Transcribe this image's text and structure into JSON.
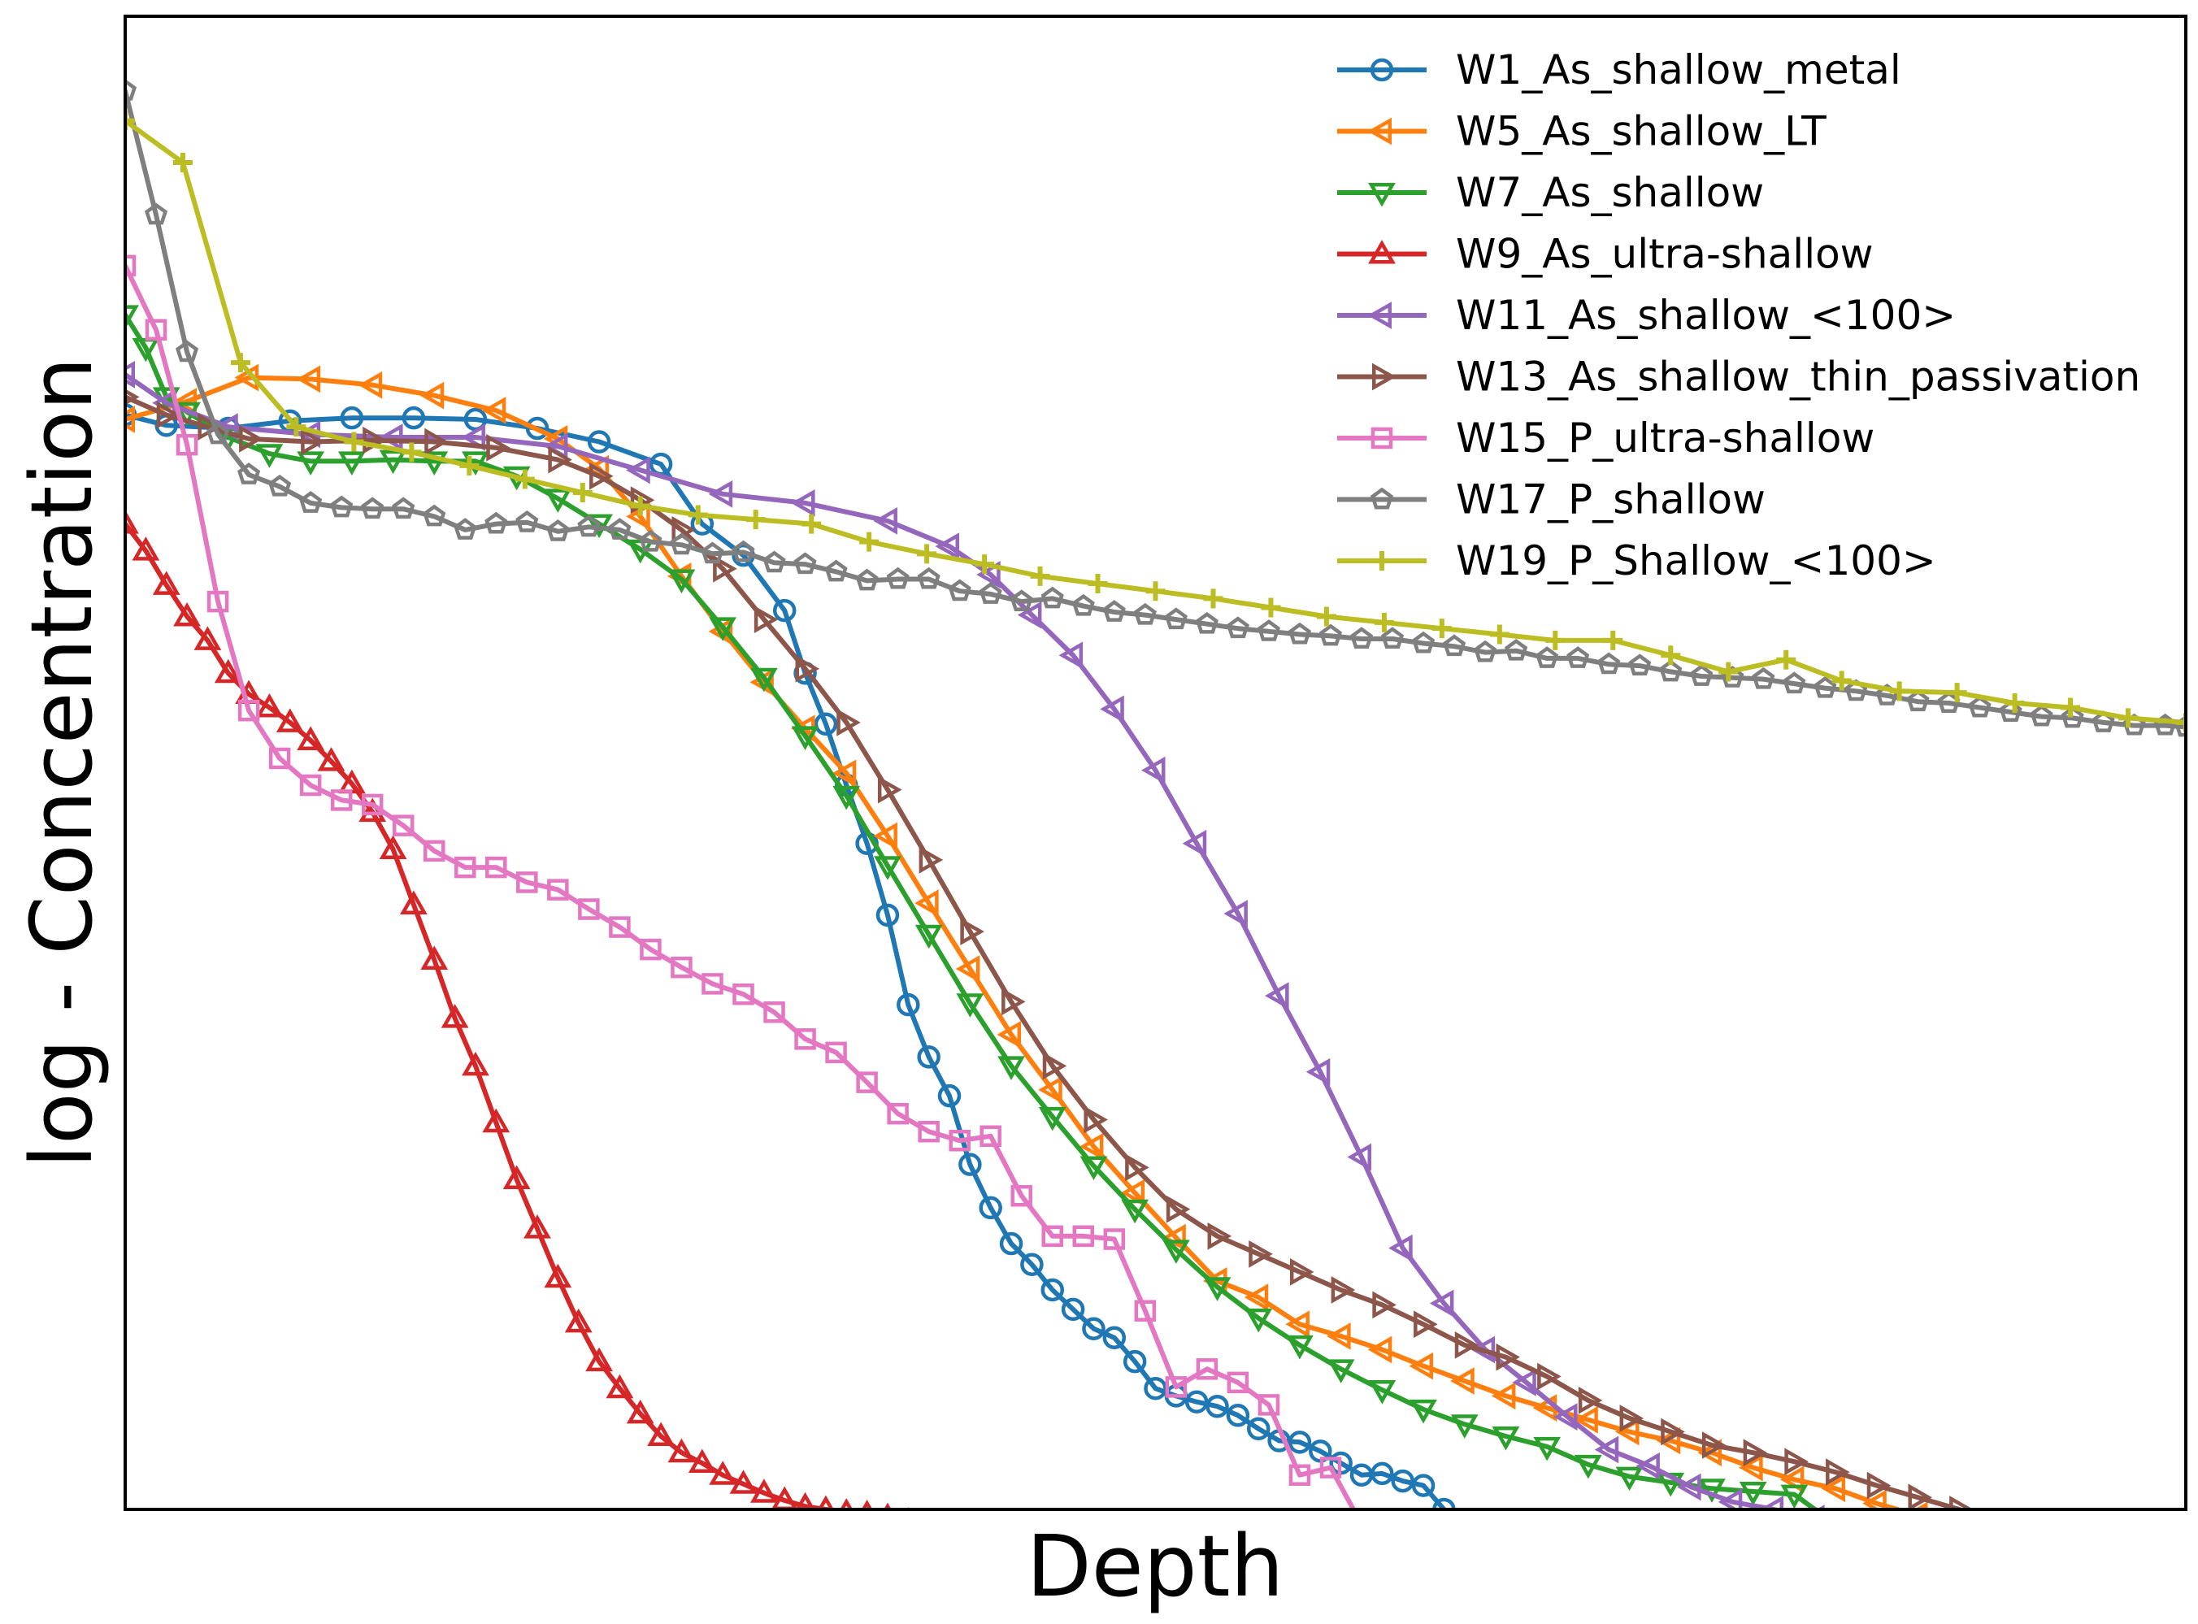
{
  "chart_data": {
    "type": "line",
    "title": "",
    "xlabel": "Depth",
    "ylabel": "log - Concentration",
    "xlim": [
      0,
      100
    ],
    "ylim": [
      0,
      100
    ],
    "x_ticks_shown": false,
    "y_ticks_shown": false,
    "grid": false,
    "legend_position": "top-right",
    "series": [
      {
        "name": "W1_As_shallow_metal",
        "color": "#1f77b4",
        "marker": "circle",
        "x": [
          0,
          2,
          5,
          8,
          11,
          14,
          17,
          20,
          23,
          26,
          28,
          30,
          32,
          33,
          34,
          35,
          36,
          37,
          38,
          39,
          40,
          41,
          42,
          43,
          44,
          45,
          46,
          47,
          48,
          49,
          50,
          51,
          52,
          53,
          54,
          55,
          56,
          57,
          58,
          59,
          60,
          61,
          62,
          63,
          64,
          65,
          66
        ],
        "y": [
          73.3,
          72.6,
          72.4,
          72.9,
          73.1,
          73.1,
          73.0,
          72.4,
          71.5,
          70.0,
          66.0,
          63.9,
          60.2,
          56.0,
          52.6,
          48.5,
          44.6,
          39.8,
          33.8,
          30.3,
          27.7,
          23.1,
          20.2,
          17.8,
          16.4,
          14.7,
          13.4,
          12.1,
          11.5,
          9.9,
          8.1,
          7.6,
          7.2,
          6.9,
          6.3,
          5.4,
          4.6,
          4.5,
          3.9,
          3.1,
          2.3,
          2.4,
          1.9,
          1.6,
          0.0,
          -1.0,
          -2.0
        ]
      },
      {
        "name": "W5_As_shallow_LT",
        "color": "#ff7f0e",
        "marker": "triangle-left",
        "x": [
          0,
          3,
          6,
          9,
          12,
          15,
          18,
          21,
          23,
          25,
          27,
          29,
          31,
          33,
          35,
          37,
          39,
          41,
          43,
          45,
          47,
          49,
          51,
          53,
          55,
          57,
          59,
          61,
          63,
          65,
          67,
          69,
          71,
          73,
          75,
          77,
          79,
          81,
          83,
          85,
          87,
          89,
          91,
          93
        ],
        "y": [
          73.0,
          74.2,
          75.8,
          75.7,
          75.3,
          74.6,
          73.6,
          71.7,
          69.7,
          66.5,
          62.5,
          58.8,
          55.4,
          52.3,
          49.3,
          45.1,
          40.6,
          36.2,
          31.8,
          28.1,
          24.3,
          21.2,
          18.2,
          15.3,
          14.2,
          12.4,
          11.6,
          10.7,
          9.6,
          8.6,
          7.6,
          6.8,
          6.0,
          5.2,
          4.6,
          3.8,
          2.8,
          2.0,
          1.4,
          0.4,
          -0.4,
          -1.0,
          -0.8,
          -1.4
        ]
      },
      {
        "name": "W7_As_shallow",
        "color": "#2ca02c",
        "marker": "triangle-down",
        "x": [
          0,
          1,
          2,
          3,
          5,
          7,
          9,
          11,
          13,
          15,
          17,
          19,
          21,
          23,
          25,
          27,
          29,
          31,
          33,
          35,
          37,
          39,
          41,
          43,
          45,
          47,
          49,
          51,
          53,
          55,
          57,
          59,
          61,
          63,
          65,
          67,
          69,
          71,
          73,
          75,
          77,
          79,
          81,
          83
        ],
        "y": [
          80.0,
          77.8,
          74.5,
          73.5,
          71.8,
          70.7,
          70.2,
          70.2,
          70.3,
          70.2,
          70.2,
          69.2,
          67.7,
          66.0,
          64.3,
          62.3,
          59.1,
          55.7,
          51.8,
          47.8,
          43.1,
          38.5,
          33.9,
          29.7,
          26.3,
          23.0,
          20.1,
          17.4,
          14.9,
          12.8,
          11.0,
          9.4,
          8.0,
          6.7,
          5.7,
          4.9,
          4.2,
          3.0,
          2.2,
          1.8,
          1.4,
          1.2,
          1.0,
          -1.0
        ]
      },
      {
        "name": "W9_As_ultra-shallow",
        "color": "#d62728",
        "marker": "triangle-up",
        "x": [
          0,
          1,
          2,
          3,
          4,
          5,
          6,
          7,
          8,
          9,
          10,
          11,
          12,
          13,
          14,
          15,
          16,
          17,
          18,
          19,
          20,
          21,
          22,
          23,
          24,
          25,
          26,
          27,
          28,
          29,
          30,
          31,
          32,
          33,
          34,
          35,
          36,
          37,
          38,
          39,
          40,
          41,
          42,
          43,
          44,
          45
        ],
        "y": [
          66.0,
          64.2,
          61.9,
          59.8,
          58.2,
          56.0,
          54.6,
          53.7,
          52.7,
          51.5,
          50.1,
          48.6,
          46.7,
          44.2,
          40.5,
          36.8,
          32.9,
          29.7,
          25.9,
          22.1,
          18.8,
          15.5,
          12.5,
          9.9,
          8.1,
          6.4,
          4.9,
          3.8,
          3.1,
          2.3,
          1.7,
          1.1,
          0.6,
          0.2,
          0.0,
          -0.2,
          -0.3,
          -0.5,
          -0.8,
          -1.0,
          -1.2,
          -1.4,
          -1.6,
          -1.8,
          -2.0,
          -2.2
        ]
      },
      {
        "name": "W11_As_shallow_<100>",
        "color": "#9467bd",
        "marker": "triangle-left",
        "x": [
          0,
          2,
          5,
          9,
          13,
          17,
          21,
          25,
          29,
          33,
          37,
          40,
          42,
          44,
          46,
          48,
          50,
          52,
          54,
          56,
          58,
          60,
          62,
          64,
          66,
          68,
          70,
          72,
          74,
          76,
          78,
          80,
          82,
          84,
          86
        ],
        "y": [
          76.0,
          74.1,
          72.5,
          72.0,
          71.8,
          71.8,
          71.2,
          69.6,
          68.0,
          67.4,
          66.2,
          64.5,
          62.6,
          59.9,
          57.2,
          53.6,
          49.5,
          44.6,
          39.9,
          34.4,
          29.3,
          23.6,
          17.5,
          13.8,
          10.7,
          8.5,
          6.2,
          4.0,
          2.9,
          1.5,
          0.5,
          0.0,
          -0.6,
          -1.2,
          -2.0
        ]
      },
      {
        "name": "W13_As_shallow_thin_passivation",
        "color": "#8c564b",
        "marker": "triangle-right",
        "x": [
          0,
          2,
          4,
          6,
          9,
          12,
          15,
          18,
          21,
          23,
          25,
          27,
          29,
          31,
          33,
          35,
          37,
          39,
          41,
          43,
          45,
          47,
          49,
          51,
          53,
          55,
          57,
          59,
          61,
          63,
          65,
          67,
          69,
          71,
          73,
          75,
          77,
          79,
          81,
          83,
          85,
          87,
          89,
          91
        ],
        "y": [
          74.5,
          73.3,
          72.5,
          71.7,
          71.5,
          71.6,
          71.5,
          71.1,
          70.3,
          69.2,
          67.6,
          65.6,
          63.0,
          59.6,
          56.3,
          52.7,
          48.2,
          43.5,
          38.7,
          34.0,
          29.7,
          26.1,
          22.9,
          20.1,
          18.3,
          17.1,
          15.9,
          14.7,
          13.7,
          12.4,
          11.0,
          10.2,
          8.9,
          7.3,
          6.1,
          5.2,
          4.3,
          3.8,
          3.2,
          2.5,
          1.6,
          0.8,
          0.0,
          -1.0
        ]
      },
      {
        "name": "W15_P_ultra-shallow",
        "color": "#e377c2",
        "marker": "square",
        "x": [
          0,
          1.5,
          3,
          4.5,
          6,
          7.5,
          9,
          10.5,
          12,
          13.5,
          15,
          16.5,
          18,
          19.5,
          21,
          22.5,
          24,
          25.5,
          27,
          28.5,
          30,
          31.5,
          33,
          34.5,
          36,
          37.5,
          39,
          40.5,
          42,
          43.5,
          45,
          46.5,
          48,
          49.5,
          51,
          52.5,
          54,
          55.5,
          57,
          58.5,
          60,
          61.5
        ],
        "y": [
          83.3,
          79.0,
          71.3,
          60.8,
          53.5,
          50.3,
          48.5,
          47.5,
          47.2,
          45.8,
          44.1,
          43.0,
          43.0,
          42.0,
          41.5,
          40.2,
          39.0,
          37.5,
          36.3,
          35.2,
          34.5,
          33.3,
          31.5,
          30.6,
          28.6,
          26.5,
          25.3,
          24.7,
          25.0,
          21.0,
          18.3,
          18.3,
          18.1,
          13.3,
          8.2,
          9.4,
          8.5,
          7.0,
          2.3,
          2.8,
          -1.0,
          -2.0
        ]
      },
      {
        "name": "W17_P_shallow",
        "color": "#7f7f7f",
        "marker": "pentagon",
        "x": [
          0,
          1.5,
          3,
          4.5,
          6,
          7.5,
          9,
          10.5,
          12,
          13.5,
          15,
          16.5,
          18,
          19.5,
          21,
          22.5,
          24,
          25.5,
          27,
          28.5,
          30,
          31.5,
          33,
          34.5,
          36,
          37.5,
          39,
          40.5,
          42,
          43.5,
          45,
          46.5,
          48,
          49.5,
          51,
          52.5,
          54,
          55.5,
          57,
          58.5,
          60,
          61.5,
          63,
          64.5,
          66,
          67.5,
          69,
          70.5,
          72,
          73.5,
          75,
          76.5,
          78,
          79.5,
          81,
          82.5,
          84,
          85.5,
          87,
          88.5,
          90,
          91.5,
          93,
          94.5,
          96,
          97.5,
          99,
          100
        ],
        "y": [
          95.0,
          86.7,
          77.5,
          72.0,
          69.3,
          68.5,
          67.4,
          67.1,
          67.0,
          67.0,
          66.5,
          65.6,
          66.0,
          66.1,
          65.5,
          65.8,
          65.6,
          64.8,
          64.6,
          64.0,
          64.1,
          63.4,
          63.3,
          62.8,
          62.2,
          62.3,
          62.3,
          61.5,
          61.3,
          60.8,
          61.0,
          60.5,
          60.1,
          59.9,
          59.6,
          59.3,
          59.0,
          58.8,
          58.6,
          58.5,
          58.3,
          58.3,
          58.0,
          57.8,
          57.4,
          57.5,
          57.0,
          57.0,
          56.6,
          56.5,
          56.1,
          55.8,
          55.7,
          55.6,
          55.3,
          55.0,
          54.8,
          54.5,
          54.1,
          54.0,
          53.7,
          53.4,
          53.1,
          53.0,
          52.7,
          52.5,
          52.5,
          52.4
        ]
      },
      {
        "name": "W19_P_Shallow_<100>",
        "color": "#bcbd22",
        "marker": "plus",
        "x": [
          0,
          2.8,
          5.6,
          8.3,
          11.1,
          13.9,
          16.7,
          19.4,
          22.2,
          25,
          27.8,
          30.6,
          33.3,
          36.1,
          38.9,
          41.7,
          44.4,
          47.2,
          50,
          52.8,
          55.6,
          58.3,
          61.1,
          63.9,
          66.7,
          69.4,
          72.2,
          75,
          77.8,
          80.6,
          83.3,
          86.1,
          88.9,
          91.7,
          94.4,
          97.2,
          100
        ],
        "y": [
          93.0,
          90.2,
          76.8,
          72.5,
          71.5,
          70.8,
          69.9,
          69.0,
          68.1,
          67.2,
          66.6,
          66.3,
          66.0,
          64.8,
          64.0,
          63.3,
          62.5,
          62.0,
          61.5,
          61.0,
          60.4,
          59.8,
          59.4,
          59.0,
          58.6,
          58.2,
          58.2,
          57.2,
          56.1,
          56.9,
          55.5,
          54.8,
          54.7,
          54.0,
          53.7,
          53.0,
          52.7
        ]
      }
    ]
  }
}
